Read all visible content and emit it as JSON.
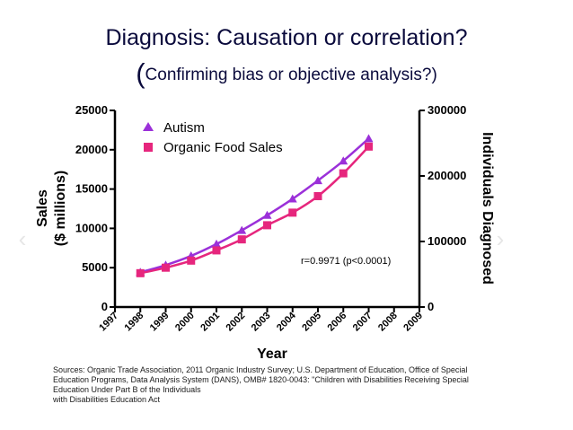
{
  "title": "Diagnosis: Causation or correlation?",
  "subtitle": {
    "open": "(",
    "text": "Confirming bias or objective analysis?",
    "close": ")"
  },
  "chart_data": {
    "type": "line",
    "x": [
      1998,
      1999,
      2000,
      2001,
      2002,
      2003,
      2004,
      2005,
      2006,
      2007
    ],
    "xlim": [
      1997,
      2009
    ],
    "xticks": [
      "1997",
      "1998",
      "1999",
      "2000",
      "2001",
      "2002",
      "2003",
      "2004",
      "2005",
      "2006",
      "2007",
      "2008",
      "2009"
    ],
    "xlabel": "Year",
    "ylabel": [
      "Sales",
      "($ millions)"
    ],
    "ylim": [
      0,
      25000
    ],
    "yticks": [
      "0",
      "5000",
      "10000",
      "15000",
      "20000",
      "25000"
    ],
    "y2label": "Individuals Diagnosed",
    "y2lim": [
      0,
      300000
    ],
    "y2ticks": [
      "0",
      "100000",
      "200000",
      "300000"
    ],
    "grid": false,
    "legend": "top-left",
    "series": [
      {
        "name": "Autism",
        "axis": "right",
        "marker": "triangle",
        "color": "#9b30d9",
        "values": [
          53000,
          64000,
          78000,
          96000,
          117000,
          140000,
          165000,
          193000,
          223000,
          257000
        ]
      },
      {
        "name": "Organic Food Sales",
        "axis": "left",
        "marker": "square",
        "color": "#e6267d",
        "values": [
          4300,
          5000,
          5900,
          7200,
          8600,
          10400,
          12000,
          14100,
          17000,
          20400
        ]
      }
    ],
    "annotation": "r=0.9971 (p<0.0001)"
  },
  "sources": [
    "Sources: Organic Trade Association,  2011 Organic Industry Survey; U.S. Department of Education, Office of Special",
    "Education Programs, Data Analysis System (DANS), OMB# 1820-0043: \"Children with Disabilities Receiving Special",
    "Education Under Part B of the Individuals",
    "with Disabilities Education Act"
  ],
  "nav": {
    "prev": "‹",
    "next": "›"
  }
}
